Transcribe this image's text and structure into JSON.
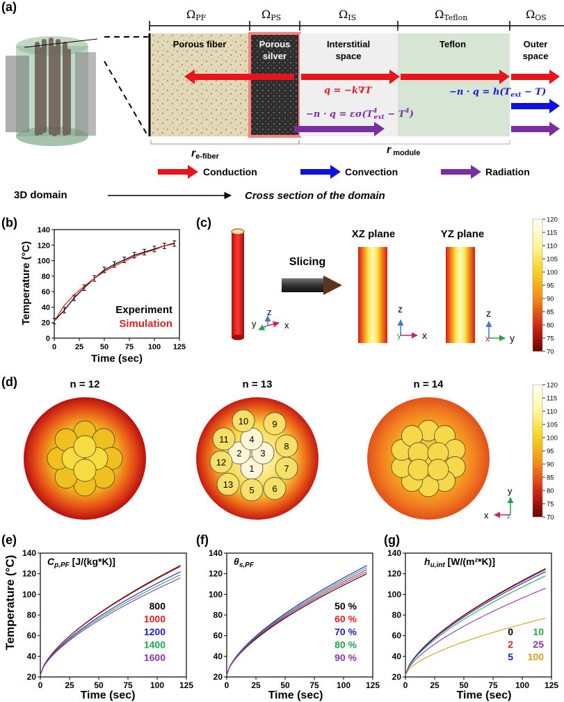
{
  "panel_a": {
    "label": "(a)",
    "domains": [
      {
        "omega": "Ω",
        "sub": "PF"
      },
      {
        "omega": "Ω",
        "sub": "PS"
      },
      {
        "omega": "Ω",
        "sub": "IS"
      },
      {
        "omega": "Ω",
        "sub": "Teflon"
      },
      {
        "omega": "Ω",
        "sub": "OS"
      }
    ],
    "region_pf": "Porous fiber",
    "region_ps_1": "Porous",
    "region_ps_2": "silver",
    "region_is_1": "Interstitial",
    "region_is_2": "space",
    "region_teflon": "Teflon",
    "region_os_1": "Outer",
    "region_os_2": "space",
    "eq_conduction": "q = −k∇T",
    "eq_convection": "−n · q = h(T",
    "eq_convection_sub": "ext",
    "eq_convection_end": " − T)",
    "eq_radiation": "−n · q = εσ(T",
    "eq_radiation_sup1": "4",
    "eq_radiation_sub1": "ext",
    "eq_radiation_mid": " − T",
    "eq_radiation_sup2": "4",
    "eq_radiation_end": ")",
    "r_fiber": "r",
    "r_fiber_sub": "e-fiber",
    "r_module": "r",
    "r_module_sub": "module",
    "legend": [
      {
        "label": "Conduction",
        "color": "#e8141c"
      },
      {
        "label": "Convection",
        "color": "#1010e0"
      },
      {
        "label": "Radiation",
        "color": "#7a2fa0"
      }
    ],
    "footer_left": "3D domain",
    "footer_right": "Cross section of the domain"
  },
  "panel_b": {
    "label": "(b)",
    "ylabel": "Temperature (°C)",
    "xlabel": "Time (sec)",
    "legend_experiment": "Experiment",
    "legend_simulation": "Simulation",
    "exp_color": "#000000",
    "sim_color": "#e02020"
  },
  "panel_c": {
    "label": "(c)",
    "slicing": "Slicing",
    "xz_title": "XZ plane",
    "yz_title": "YZ plane",
    "axis_z": "z",
    "axis_x": "x",
    "axis_y": "y"
  },
  "panel_d": {
    "label": "(d)",
    "titles": [
      "n = 12",
      "n = 13",
      "n = 14"
    ],
    "fiber_numbers": [
      "1",
      "2",
      "3",
      "4",
      "5",
      "6",
      "7",
      "8",
      "9",
      "10",
      "11",
      "12",
      "13"
    ],
    "axis_y": "y",
    "axis_x": "x",
    "axis_z": "z"
  },
  "colorbar": {
    "ticks": [
      "120",
      "115",
      "110",
      "105",
      "100",
      "95",
      "90",
      "85",
      "80",
      "75",
      "70"
    ]
  },
  "panel_e": {
    "label": "(e)",
    "title": "C",
    "title_sub": "p,PF",
    "title_units": " [J/(kg*K)]",
    "ylabel": "Temperature (°C)",
    "xlabel": "Time (sec)",
    "legend": [
      {
        "label": "800",
        "color": "#000000"
      },
      {
        "label": "1000",
        "color": "#e02020"
      },
      {
        "label": "1200",
        "color": "#1a1ad8"
      },
      {
        "label": "1400",
        "color": "#1fa84a"
      },
      {
        "label": "1600",
        "color": "#8a35b0"
      }
    ]
  },
  "panel_f": {
    "label": "(f)",
    "title": "θ",
    "title_sub": "s,PF",
    "xlabel": "Time (sec)",
    "legend": [
      {
        "label": "50 %",
        "color": "#000000"
      },
      {
        "label": "60 %",
        "color": "#e02020"
      },
      {
        "label": "70 %",
        "color": "#1a1ad8"
      },
      {
        "label": "80 %",
        "color": "#1fa84a"
      },
      {
        "label": "90 %",
        "color": "#8a35b0"
      }
    ]
  },
  "panel_g": {
    "label": "(g)",
    "title": "h",
    "title_sub": "u,int",
    "title_units": " [W/(m²*K)]",
    "xlabel": "Time (sec)",
    "legend": [
      {
        "label": "0",
        "color": "#000000"
      },
      {
        "label": "10",
        "color": "#1fa84a"
      },
      {
        "label": "2",
        "color": "#e02020"
      },
      {
        "label": "25",
        "color": "#8a35b0"
      },
      {
        "label": "5",
        "color": "#1a1ad8"
      },
      {
        "label": "100",
        "color": "#d4a017"
      }
    ]
  },
  "chart_data": [
    {
      "id": "b",
      "type": "line",
      "title": "",
      "xlabel": "Time (sec)",
      "ylabel": "Temperature (°C)",
      "xlim": [
        0,
        120
      ],
      "ylim": [
        0,
        140
      ],
      "xticks": [
        0,
        25,
        50,
        75,
        100,
        125
      ],
      "yticks": [
        0,
        20,
        40,
        60,
        80,
        100,
        120,
        140
      ],
      "x": [
        0,
        10,
        20,
        30,
        40,
        50,
        60,
        70,
        80,
        90,
        100,
        110,
        120
      ],
      "series": [
        {
          "name": "Experiment",
          "color": "#000000",
          "values": [
            22,
            36,
            52,
            65,
            77,
            88,
            95,
            101,
            107,
            111,
            115,
            119,
            122
          ],
          "errorbars": true
        },
        {
          "name": "Simulation",
          "color": "#e02020",
          "values": [
            22,
            42,
            56,
            67,
            77,
            86,
            93,
            99,
            105,
            110,
            114,
            119,
            123
          ]
        }
      ]
    },
    {
      "id": "e",
      "type": "line",
      "title": "Cp,PF [J/(kg*K)]",
      "xlabel": "Time (sec)",
      "ylabel": "Temperature (°C)",
      "xlim": [
        0,
        120
      ],
      "ylim": [
        20,
        140
      ],
      "xticks": [
        0,
        25,
        50,
        75,
        100,
        125
      ],
      "yticks": [
        20,
        40,
        60,
        80,
        100,
        120,
        140
      ],
      "series": [
        {
          "name": "800",
          "color": "#000000",
          "final": 128
        },
        {
          "name": "1000",
          "color": "#e02020",
          "final": 127
        },
        {
          "name": "1200",
          "color": "#1a1ad8",
          "final": 122
        },
        {
          "name": "1400",
          "color": "#1fa84a",
          "final": 119
        },
        {
          "name": "1600",
          "color": "#8a35b0",
          "final": 116
        }
      ]
    },
    {
      "id": "f",
      "type": "line",
      "title": "θs,PF",
      "xlabel": "Time (sec)",
      "ylabel": "",
      "xlim": [
        0,
        120
      ],
      "ylim": [
        20,
        140
      ],
      "xticks": [
        0,
        25,
        50,
        75,
        100,
        125
      ],
      "yticks": [
        20,
        40,
        60,
        80,
        100,
        120,
        140
      ],
      "series": [
        {
          "name": "50 %",
          "color": "#000000",
          "final": 120
        },
        {
          "name": "60 %",
          "color": "#e02020",
          "final": 122
        },
        {
          "name": "70 %",
          "color": "#1a1ad8",
          "final": 128
        },
        {
          "name": "80 %",
          "color": "#1fa84a",
          "final": 126
        },
        {
          "name": "90 %",
          "color": "#8a35b0",
          "final": 124
        }
      ]
    },
    {
      "id": "g",
      "type": "line",
      "title": "hu,int [W/(m²*K)]",
      "xlabel": "Time (sec)",
      "ylabel": "",
      "xlim": [
        0,
        120
      ],
      "ylim": [
        20,
        140
      ],
      "xticks": [
        0,
        25,
        50,
        75,
        100,
        125
      ],
      "yticks": [
        20,
        40,
        60,
        80,
        100,
        120,
        140
      ],
      "series": [
        {
          "name": "0",
          "color": "#000000",
          "final": 125
        },
        {
          "name": "2",
          "color": "#e02020",
          "final": 124
        },
        {
          "name": "5",
          "color": "#1a1ad8",
          "final": 122
        },
        {
          "name": "10",
          "color": "#1fa84a",
          "final": 118
        },
        {
          "name": "25",
          "color": "#8a35b0",
          "final": 106
        },
        {
          "name": "100",
          "color": "#d4a017",
          "final": 77
        }
      ]
    }
  ]
}
